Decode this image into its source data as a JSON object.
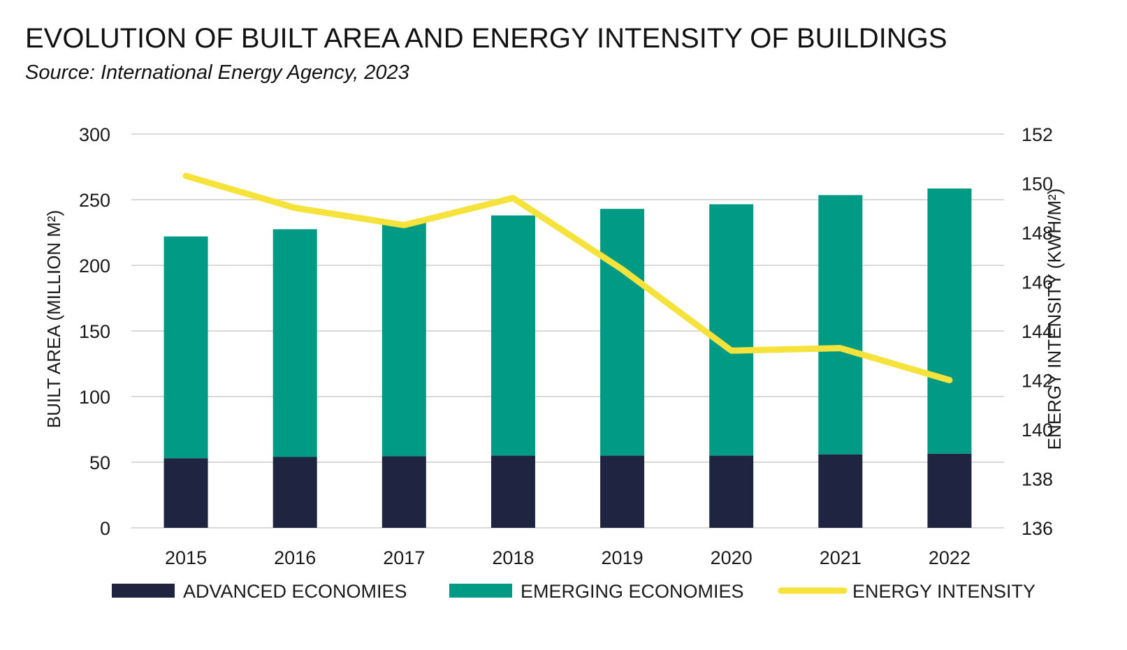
{
  "chart_data": {
    "type": "bar",
    "stacked": true,
    "title": "EVOLUTION OF BUILT AREA AND ENERGY INTENSITY OF BUILDINGS",
    "subtitle": "Source: International Energy Agency, 2023",
    "categories": [
      "2015",
      "2016",
      "2017",
      "2018",
      "2019",
      "2020",
      "2021",
      "2022"
    ],
    "ylabel": "BUILT AREA (MILLION M²)",
    "ylim": [
      0,
      300
    ],
    "yticks": [
      0,
      50,
      100,
      150,
      200,
      250,
      300
    ],
    "y2label": "ENERGY INTENSITY (KWH/M²)",
    "y2lim": [
      136,
      152
    ],
    "y2ticks": [
      136,
      138,
      140,
      142,
      144,
      146,
      148,
      150,
      152
    ],
    "grid": true,
    "legend_position": "bottom",
    "series": [
      {
        "name": "ADVANCED ECONOMIES",
        "type": "bar",
        "axis": "left",
        "color": "#1f2440",
        "values": [
          53,
          54,
          54.5,
          55,
          55,
          55,
          56,
          56.5
        ]
      },
      {
        "name": "EMERGING ECONOMIES",
        "type": "bar",
        "axis": "left",
        "color": "#009a85",
        "values": [
          169,
          173.5,
          178,
          183,
          188,
          191.5,
          197.5,
          202
        ]
      },
      {
        "name": "ENERGY INTENSITY",
        "type": "line",
        "axis": "right",
        "color": "#f5e33b",
        "values": [
          150.3,
          149.0,
          148.3,
          149.4,
          146.5,
          143.2,
          143.3,
          142.0
        ]
      }
    ]
  }
}
